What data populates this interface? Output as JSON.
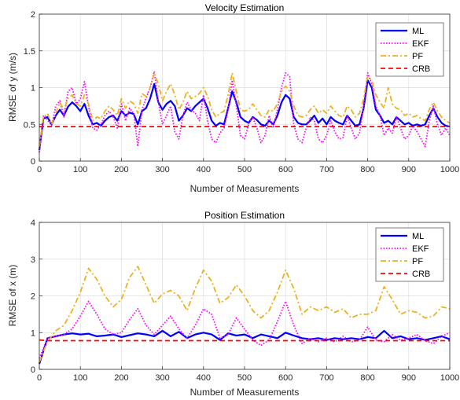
{
  "chart_data": [
    {
      "type": "line",
      "title": "Velocity Estimation",
      "xlabel": "Number of Measurements",
      "ylabel": "RMSE of y (m/s)",
      "xlim": [
        0,
        1000
      ],
      "ylim": [
        0,
        2
      ],
      "xticks": [
        0,
        100,
        200,
        300,
        400,
        500,
        600,
        700,
        800,
        900,
        1000
      ],
      "yticks": [
        0,
        0.5,
        1,
        1.5,
        2
      ],
      "ytick_labels": [
        "0",
        "0.5",
        "1",
        "1.5",
        "2"
      ],
      "grid": true,
      "legend_position": "top-right",
      "x": [
        0,
        10,
        20,
        30,
        40,
        50,
        60,
        70,
        80,
        90,
        100,
        110,
        120,
        130,
        140,
        150,
        160,
        170,
        180,
        190,
        200,
        210,
        220,
        230,
        240,
        250,
        260,
        270,
        280,
        290,
        300,
        310,
        320,
        330,
        340,
        350,
        360,
        370,
        380,
        390,
        400,
        410,
        420,
        430,
        440,
        450,
        460,
        470,
        480,
        490,
        500,
        510,
        520,
        530,
        540,
        550,
        560,
        570,
        580,
        590,
        600,
        610,
        620,
        630,
        640,
        650,
        660,
        670,
        680,
        690,
        700,
        710,
        720,
        730,
        740,
        750,
        760,
        770,
        780,
        790,
        800,
        810,
        820,
        830,
        840,
        850,
        860,
        870,
        880,
        890,
        900,
        910,
        920,
        930,
        940,
        950,
        960,
        970,
        980,
        990,
        1000
      ],
      "series": [
        {
          "name": "ML",
          "color": "#0000FF",
          "style": "solid",
          "values": [
            0.15,
            0.58,
            0.6,
            0.5,
            0.62,
            0.7,
            0.62,
            0.74,
            0.8,
            0.75,
            0.68,
            0.78,
            0.62,
            0.5,
            0.52,
            0.48,
            0.55,
            0.6,
            0.62,
            0.55,
            0.68,
            0.62,
            0.66,
            0.64,
            0.5,
            0.68,
            0.72,
            0.85,
            1.05,
            0.8,
            0.7,
            0.78,
            0.82,
            0.75,
            0.55,
            0.62,
            0.72,
            0.68,
            0.75,
            0.8,
            0.85,
            0.72,
            0.55,
            0.48,
            0.52,
            0.5,
            0.72,
            0.95,
            0.8,
            0.6,
            0.55,
            0.52,
            0.6,
            0.56,
            0.5,
            0.48,
            0.55,
            0.5,
            0.62,
            0.8,
            0.9,
            0.85,
            0.6,
            0.52,
            0.5,
            0.5,
            0.55,
            0.62,
            0.52,
            0.58,
            0.5,
            0.6,
            0.55,
            0.52,
            0.5,
            0.62,
            0.55,
            0.48,
            0.5,
            0.72,
            1.1,
            1.0,
            0.7,
            0.62,
            0.52,
            0.55,
            0.5,
            0.6,
            0.55,
            0.5,
            0.52,
            0.48,
            0.5,
            0.48,
            0.5,
            0.62,
            0.72,
            0.6,
            0.52,
            0.48,
            0.47
          ]
        },
        {
          "name": "EKF",
          "color": "#FF00FF",
          "style": "dotted",
          "values": [
            0.12,
            0.62,
            0.56,
            0.48,
            0.75,
            0.82,
            0.6,
            0.95,
            1.0,
            0.78,
            0.85,
            1.08,
            0.75,
            0.45,
            0.42,
            0.5,
            0.62,
            0.68,
            0.6,
            0.45,
            0.78,
            0.55,
            0.72,
            0.65,
            0.2,
            0.7,
            0.85,
            1.0,
            1.22,
            0.8,
            0.5,
            0.62,
            0.75,
            0.4,
            0.3,
            0.62,
            0.8,
            0.7,
            0.65,
            0.55,
            0.9,
            0.55,
            0.3,
            0.25,
            0.38,
            0.45,
            0.7,
            1.1,
            0.75,
            0.35,
            0.3,
            0.5,
            0.6,
            0.45,
            0.25,
            0.35,
            0.62,
            0.45,
            0.7,
            1.0,
            1.2,
            1.15,
            0.5,
            0.3,
            0.25,
            0.45,
            0.6,
            0.55,
            0.3,
            0.25,
            0.35,
            0.55,
            0.4,
            0.3,
            0.32,
            0.62,
            0.45,
            0.3,
            0.38,
            0.75,
            1.2,
            1.05,
            0.75,
            0.62,
            0.35,
            0.45,
            0.38,
            0.6,
            0.45,
            0.3,
            0.35,
            0.48,
            0.4,
            0.3,
            0.2,
            0.55,
            0.75,
            0.5,
            0.35,
            0.45,
            0.35
          ]
        },
        {
          "name": "PF",
          "color": "#EDB120",
          "style": "dashdot",
          "values": [
            0.2,
            0.6,
            0.65,
            0.5,
            0.65,
            0.8,
            0.7,
            0.85,
            0.9,
            0.78,
            0.75,
            0.9,
            0.78,
            0.55,
            0.6,
            0.58,
            0.68,
            0.75,
            0.7,
            0.62,
            0.85,
            0.72,
            0.82,
            0.78,
            0.65,
            0.92,
            0.88,
            1.0,
            1.2,
            1.05,
            0.82,
            0.95,
            1.05,
            0.9,
            0.7,
            0.8,
            0.95,
            0.85,
            0.88,
            0.92,
            1.0,
            0.88,
            0.7,
            0.6,
            0.65,
            0.68,
            0.9,
            1.2,
            0.95,
            0.7,
            0.68,
            0.7,
            0.78,
            0.7,
            0.62,
            0.6,
            0.7,
            0.68,
            0.78,
            0.95,
            1.02,
            0.95,
            0.75,
            0.62,
            0.6,
            0.62,
            0.7,
            0.75,
            0.65,
            0.7,
            0.65,
            0.75,
            0.68,
            0.62,
            0.6,
            0.75,
            0.7,
            0.6,
            0.65,
            0.85,
            1.15,
            1.1,
            0.9,
            0.8,
            0.72,
            1.0,
            0.78,
            0.72,
            0.7,
            0.62,
            0.65,
            0.6,
            0.62,
            0.58,
            0.55,
            0.7,
            0.8,
            0.68,
            0.6,
            0.55,
            0.52
          ]
        },
        {
          "name": "CRB",
          "color": "#FF0000",
          "style": "dashed",
          "values": [
            0.47,
            0.47,
            0.47,
            0.47,
            0.47,
            0.47,
            0.47,
            0.47,
            0.47,
            0.47,
            0.47,
            0.47,
            0.47,
            0.47,
            0.47,
            0.47,
            0.47,
            0.47,
            0.47,
            0.47,
            0.47,
            0.47,
            0.47,
            0.47,
            0.47,
            0.47,
            0.47,
            0.47,
            0.47,
            0.47,
            0.47,
            0.47,
            0.47,
            0.47,
            0.47,
            0.47,
            0.47,
            0.47,
            0.47,
            0.47,
            0.47,
            0.47,
            0.47,
            0.47,
            0.47,
            0.47,
            0.47,
            0.47,
            0.47,
            0.47,
            0.47,
            0.47,
            0.47,
            0.47,
            0.47,
            0.47,
            0.47,
            0.47,
            0.47,
            0.47,
            0.47,
            0.47,
            0.47,
            0.47,
            0.47,
            0.47,
            0.47,
            0.47,
            0.47,
            0.47,
            0.47,
            0.47,
            0.47,
            0.47,
            0.47,
            0.47,
            0.47,
            0.47,
            0.47,
            0.47,
            0.47,
            0.47,
            0.47,
            0.47,
            0.47,
            0.47,
            0.47,
            0.47,
            0.47,
            0.47,
            0.47,
            0.47,
            0.47,
            0.47,
            0.47,
            0.47,
            0.47,
            0.47,
            0.47,
            0.47,
            0.47
          ]
        }
      ]
    },
    {
      "type": "line",
      "title": "Position Estimation",
      "xlabel": "Number of Measurements",
      "ylabel": "RMSE of x (m)",
      "xlim": [
        0,
        1000
      ],
      "ylim": [
        0,
        4
      ],
      "xticks": [
        0,
        100,
        200,
        300,
        400,
        500,
        600,
        700,
        800,
        900,
        1000
      ],
      "yticks": [
        0,
        1,
        2,
        3,
        4
      ],
      "ytick_labels": [
        "0",
        "1",
        "2",
        "3",
        "4"
      ],
      "grid": true,
      "legend_position": "top-right",
      "x": [
        0,
        20,
        40,
        60,
        80,
        100,
        120,
        140,
        160,
        180,
        200,
        220,
        240,
        260,
        280,
        300,
        320,
        340,
        360,
        380,
        400,
        420,
        440,
        460,
        480,
        500,
        520,
        540,
        560,
        580,
        600,
        620,
        640,
        660,
        680,
        700,
        720,
        740,
        760,
        780,
        800,
        820,
        840,
        860,
        880,
        900,
        920,
        940,
        960,
        980,
        1000
      ],
      "series": [
        {
          "name": "ML",
          "color": "#0000FF",
          "style": "solid",
          "values": [
            0.15,
            0.85,
            0.9,
            0.95,
            0.98,
            0.95,
            0.97,
            0.9,
            0.92,
            0.95,
            0.88,
            0.93,
            0.98,
            0.95,
            0.9,
            1.05,
            0.9,
            1.02,
            0.85,
            0.95,
            1.0,
            0.95,
            0.8,
            0.98,
            0.92,
            0.95,
            0.85,
            0.95,
            0.9,
            0.85,
            1.0,
            0.92,
            0.85,
            0.82,
            0.85,
            0.8,
            0.85,
            0.82,
            0.85,
            0.82,
            0.88,
            0.85,
            1.05,
            0.85,
            0.9,
            0.82,
            0.85,
            0.8,
            0.85,
            0.9,
            0.82
          ]
        },
        {
          "name": "EKF",
          "color": "#FF00FF",
          "style": "dotted",
          "values": [
            0.3,
            0.85,
            0.9,
            0.95,
            1.1,
            1.45,
            1.85,
            1.5,
            1.1,
            0.95,
            1.0,
            1.35,
            1.65,
            1.2,
            0.95,
            1.2,
            1.45,
            1.1,
            0.85,
            1.2,
            1.65,
            1.5,
            0.85,
            0.95,
            1.4,
            1.1,
            0.8,
            0.65,
            0.8,
            1.3,
            1.85,
            1.2,
            0.7,
            0.85,
            0.75,
            0.85,
            0.75,
            0.9,
            0.75,
            0.8,
            1.15,
            0.8,
            0.75,
            0.95,
            0.8,
            0.85,
            0.95,
            0.78,
            0.7,
            0.9,
            1.0
          ]
        },
        {
          "name": "PF",
          "color": "#EDB120",
          "style": "dashdot",
          "values": [
            0.2,
            0.75,
            1.05,
            1.2,
            1.6,
            2.1,
            2.75,
            2.45,
            2.0,
            1.7,
            1.9,
            2.5,
            2.8,
            2.3,
            1.8,
            2.05,
            2.15,
            2.0,
            1.6,
            2.2,
            2.7,
            2.4,
            1.8,
            1.95,
            2.3,
            2.0,
            1.6,
            1.4,
            1.6,
            2.1,
            2.7,
            2.2,
            1.5,
            1.7,
            1.6,
            1.7,
            1.55,
            1.65,
            1.4,
            1.5,
            1.5,
            1.6,
            2.25,
            1.9,
            1.5,
            1.6,
            1.55,
            1.4,
            1.45,
            1.7,
            1.65
          ]
        },
        {
          "name": "CRB",
          "color": "#FF0000",
          "style": "dashed",
          "values": [
            0.8,
            0.78,
            0.78,
            0.78,
            0.78,
            0.78,
            0.78,
            0.78,
            0.78,
            0.78,
            0.78,
            0.78,
            0.78,
            0.78,
            0.78,
            0.78,
            0.78,
            0.78,
            0.78,
            0.78,
            0.78,
            0.78,
            0.78,
            0.78,
            0.78,
            0.78,
            0.78,
            0.78,
            0.78,
            0.78,
            0.78,
            0.78,
            0.78,
            0.78,
            0.78,
            0.78,
            0.78,
            0.78,
            0.78,
            0.78,
            0.78,
            0.78,
            0.78,
            0.78,
            0.78,
            0.78,
            0.78,
            0.78,
            0.78,
            0.78,
            0.78
          ]
        }
      ]
    }
  ]
}
